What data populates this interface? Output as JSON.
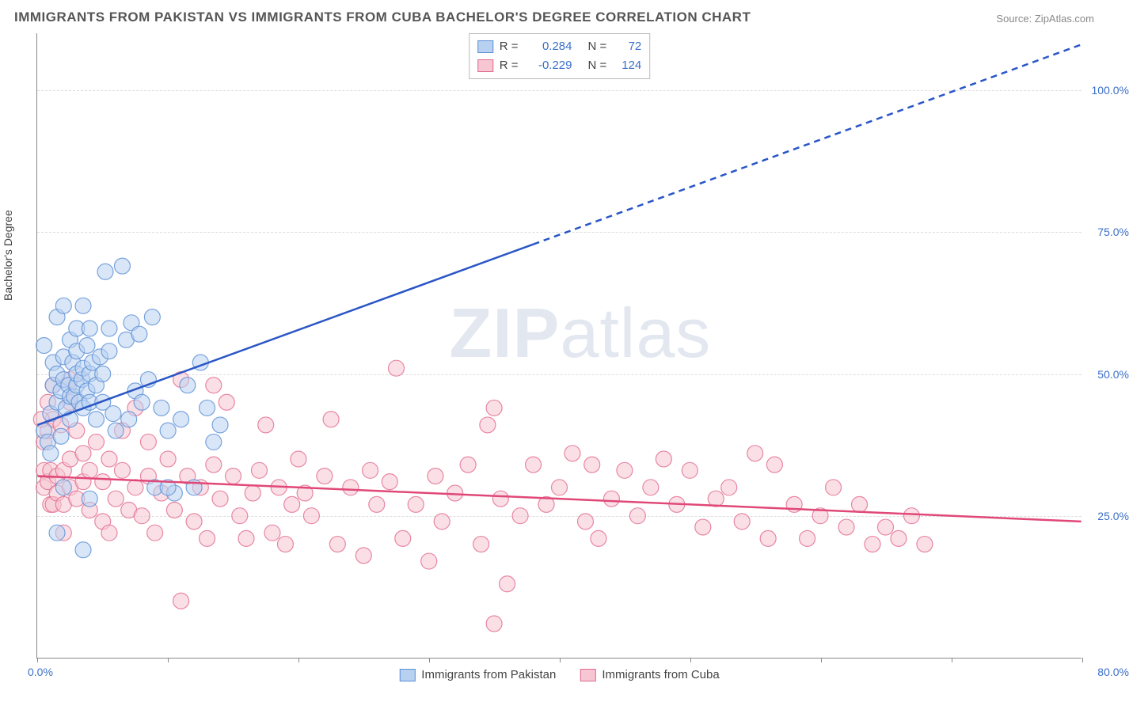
{
  "title": "IMMIGRANTS FROM PAKISTAN VS IMMIGRANTS FROM CUBA BACHELOR'S DEGREE CORRELATION CHART",
  "source_label": "Source:",
  "source_value": "ZipAtlas.com",
  "y_axis_label": "Bachelor's Degree",
  "watermark": "ZIPatlas",
  "x_axis": {
    "min": 0,
    "max": 80,
    "tick_left_label": "0.0%",
    "tick_right_label": "80.0%",
    "tick_positions": [
      0,
      10,
      20,
      30,
      40,
      50,
      60,
      70,
      80
    ]
  },
  "y_axis": {
    "min": 0,
    "max": 110,
    "grid_values": [
      25,
      50,
      75,
      100
    ],
    "grid_labels": [
      "25.0%",
      "50.0%",
      "75.0%",
      "100.0%"
    ]
  },
  "legend_stats": {
    "r_label": "R =",
    "n_label": "N =",
    "rows": [
      {
        "swatch_fill": "#b9d1f0",
        "swatch_stroke": "#5a8fd6",
        "r": "0.284",
        "n": "72"
      },
      {
        "swatch_fill": "#f6c6d2",
        "swatch_stroke": "#e26a8f",
        "r": "-0.229",
        "n": "124"
      }
    ]
  },
  "legend_bottom": [
    {
      "swatch_fill": "#b9d1f0",
      "swatch_stroke": "#5a8fd6",
      "label": "Immigrants from Pakistan"
    },
    {
      "swatch_fill": "#f6c6d2",
      "swatch_stroke": "#e26a8f",
      "label": "Immigrants from Cuba"
    }
  ],
  "series": {
    "pakistan": {
      "color_fill": "#b9d1f0",
      "color_stroke": "#5a8fd6",
      "marker_radius": 10,
      "marker_opacity": 0.55,
      "regression": {
        "x1": 0,
        "y1": 41,
        "x2": 80,
        "y2": 108,
        "solid_until_x": 38,
        "stroke": "#2a56c6",
        "width": 2.5,
        "dash_after": "8 6"
      },
      "points": [
        [
          0.5,
          40
        ],
        [
          0.5,
          55
        ],
        [
          0.8,
          38
        ],
        [
          1,
          43
        ],
        [
          1,
          36
        ],
        [
          1.2,
          48
        ],
        [
          1.2,
          52
        ],
        [
          1.5,
          45
        ],
        [
          1.5,
          50
        ],
        [
          1.5,
          60
        ],
        [
          1.8,
          39
        ],
        [
          1.8,
          47
        ],
        [
          2,
          49
        ],
        [
          2,
          53
        ],
        [
          2,
          62
        ],
        [
          2.2,
          44
        ],
        [
          2.4,
          48
        ],
        [
          2.5,
          42
        ],
        [
          2.5,
          46
        ],
        [
          2.5,
          56
        ],
        [
          2.7,
          52
        ],
        [
          2.8,
          46
        ],
        [
          3,
          48
        ],
        [
          3,
          50
        ],
        [
          3,
          54
        ],
        [
          3,
          58
        ],
        [
          3.2,
          45
        ],
        [
          3.4,
          49
        ],
        [
          3.5,
          44
        ],
        [
          3.5,
          51
        ],
        [
          3.5,
          62
        ],
        [
          3.8,
          47
        ],
        [
          3.8,
          55
        ],
        [
          4,
          45
        ],
        [
          4,
          50
        ],
        [
          4,
          58
        ],
        [
          4.2,
          52
        ],
        [
          4.5,
          48
        ],
        [
          4.5,
          42
        ],
        [
          4.8,
          53
        ],
        [
          5,
          50
        ],
        [
          5,
          45
        ],
        [
          5.2,
          68
        ],
        [
          5.5,
          58
        ],
        [
          5.5,
          54
        ],
        [
          5.8,
          43
        ],
        [
          6,
          40
        ],
        [
          6.5,
          69
        ],
        [
          6.8,
          56
        ],
        [
          7,
          42
        ],
        [
          7.2,
          59
        ],
        [
          7.5,
          47
        ],
        [
          7.8,
          57
        ],
        [
          8,
          45
        ],
        [
          8.5,
          49
        ],
        [
          8.8,
          60
        ],
        [
          9,
          30
        ],
        [
          9.5,
          44
        ],
        [
          10,
          40
        ],
        [
          10.5,
          29
        ],
        [
          11,
          42
        ],
        [
          11.5,
          48
        ],
        [
          12,
          30
        ],
        [
          12.5,
          52
        ],
        [
          13,
          44
        ],
        [
          13.5,
          38
        ],
        [
          14,
          41
        ],
        [
          1.5,
          22
        ],
        [
          2,
          30
        ],
        [
          10,
          30
        ],
        [
          4,
          28
        ],
        [
          3.5,
          19
        ]
      ]
    },
    "cuba": {
      "color_fill": "#f6c6d2",
      "color_stroke": "#e26a8f",
      "marker_radius": 10,
      "marker_opacity": 0.55,
      "regression": {
        "x1": 0,
        "y1": 32,
        "x2": 80,
        "y2": 24,
        "stroke": "#e04878",
        "width": 2.5
      },
      "points": [
        [
          0.5,
          30
        ],
        [
          0.5,
          33
        ],
        [
          0.5,
          38
        ],
        [
          0.8,
          31
        ],
        [
          0.8,
          40
        ],
        [
          1,
          27
        ],
        [
          1,
          33
        ],
        [
          1.2,
          27
        ],
        [
          1.2,
          42
        ],
        [
          1.5,
          32
        ],
        [
          1.5,
          29
        ],
        [
          1.8,
          41
        ],
        [
          2,
          33
        ],
        [
          2,
          27
        ],
        [
          2,
          22
        ],
        [
          2.5,
          45
        ],
        [
          2.5,
          30
        ],
        [
          2.5,
          35
        ],
        [
          3,
          40
        ],
        [
          3,
          28
        ],
        [
          3.5,
          31
        ],
        [
          3.5,
          36
        ],
        [
          4,
          26
        ],
        [
          4,
          33
        ],
        [
          4.5,
          38
        ],
        [
          5,
          24
        ],
        [
          5,
          31
        ],
        [
          5.5,
          22
        ],
        [
          5.5,
          35
        ],
        [
          6,
          28
        ],
        [
          6.5,
          33
        ],
        [
          6.5,
          40
        ],
        [
          7,
          26
        ],
        [
          7.5,
          30
        ],
        [
          7.5,
          44
        ],
        [
          8,
          25
        ],
        [
          8.5,
          32
        ],
        [
          8.5,
          38
        ],
        [
          9,
          22
        ],
        [
          9.5,
          29
        ],
        [
          10,
          35
        ],
        [
          10.5,
          26
        ],
        [
          11,
          10
        ],
        [
          11.5,
          32
        ],
        [
          12,
          24
        ],
        [
          12.5,
          30
        ],
        [
          13,
          21
        ],
        [
          13.5,
          34
        ],
        [
          14,
          28
        ],
        [
          14.5,
          45
        ],
        [
          15,
          32
        ],
        [
          15.5,
          25
        ],
        [
          16,
          21
        ],
        [
          16.5,
          29
        ],
        [
          17,
          33
        ],
        [
          17.5,
          41
        ],
        [
          18,
          22
        ],
        [
          18.5,
          30
        ],
        [
          19,
          20
        ],
        [
          19.5,
          27
        ],
        [
          20,
          35
        ],
        [
          20.5,
          29
        ],
        [
          21,
          25
        ],
        [
          22,
          32
        ],
        [
          22.5,
          42
        ],
        [
          23,
          20
        ],
        [
          24,
          30
        ],
        [
          25,
          18
        ],
        [
          25.5,
          33
        ],
        [
          26,
          27
        ],
        [
          27,
          31
        ],
        [
          27.5,
          51
        ],
        [
          28,
          21
        ],
        [
          29,
          27
        ],
        [
          30,
          17
        ],
        [
          30.5,
          32
        ],
        [
          31,
          24
        ],
        [
          32,
          29
        ],
        [
          33,
          34
        ],
        [
          34,
          20
        ],
        [
          34.5,
          41
        ],
        [
          35,
          44
        ],
        [
          35.5,
          28
        ],
        [
          36,
          13
        ],
        [
          37,
          25
        ],
        [
          38,
          34
        ],
        [
          39,
          27
        ],
        [
          40,
          30
        ],
        [
          41,
          36
        ],
        [
          42,
          24
        ],
        [
          42.5,
          34
        ],
        [
          43,
          21
        ],
        [
          44,
          28
        ],
        [
          45,
          33
        ],
        [
          46,
          25
        ],
        [
          47,
          30
        ],
        [
          48,
          35
        ],
        [
          49,
          27
        ],
        [
          50,
          33
        ],
        [
          51,
          23
        ],
        [
          52,
          28
        ],
        [
          53,
          30
        ],
        [
          54,
          24
        ],
        [
          55,
          36
        ],
        [
          56,
          21
        ],
        [
          56.5,
          34
        ],
        [
          58,
          27
        ],
        [
          59,
          21
        ],
        [
          60,
          25
        ],
        [
          61,
          30
        ],
        [
          62,
          23
        ],
        [
          63,
          27
        ],
        [
          64,
          20
        ],
        [
          65,
          23
        ],
        [
          66,
          21
        ],
        [
          67,
          25
        ],
        [
          68,
          20
        ],
        [
          35,
          6
        ],
        [
          11,
          49
        ],
        [
          13.5,
          48
        ],
        [
          2.5,
          49
        ],
        [
          0.3,
          42
        ],
        [
          0.8,
          45
        ],
        [
          1.2,
          48
        ]
      ]
    }
  }
}
